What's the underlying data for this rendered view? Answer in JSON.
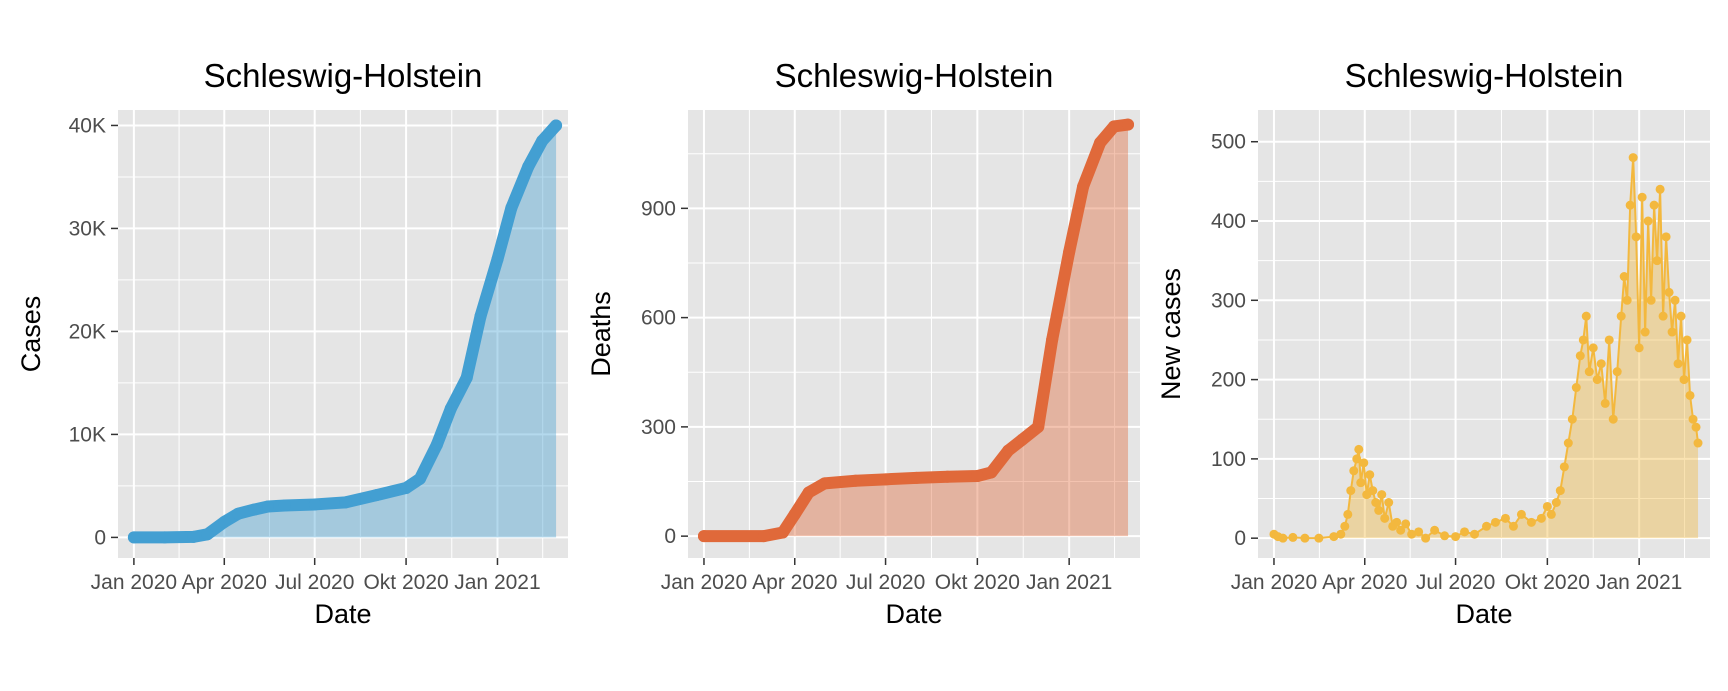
{
  "colors": {
    "panel_bg": "#e5e5e5",
    "grid": "#ffffff",
    "tick": "#333333",
    "cases": "#439fd2",
    "deaths": "#e0693a",
    "new_cases": "#f3b83e"
  },
  "chart_data": [
    {
      "type": "area",
      "title": "Schleswig-Holstein",
      "xlabel": "Date",
      "ylabel": "Cases",
      "x_range": [
        "2019-12-16",
        "2021-03-13"
      ],
      "ylim": [
        -2000,
        41500
      ],
      "y_ticks": [
        0,
        10000,
        20000,
        30000,
        40000
      ],
      "y_tick_labels": [
        "0",
        "10K",
        "20K",
        "30K",
        "40K"
      ],
      "x_ticks": [
        "2020-01-01",
        "2020-04-01",
        "2020-07-01",
        "2020-10-01",
        "2021-01-01"
      ],
      "x_tick_labels": [
        "Jan 2020",
        "Apr 2020",
        "Jul 2020",
        "Okt 2020",
        "Jan 2021"
      ],
      "color_key": "cases",
      "points": true,
      "fill": true,
      "series": [
        {
          "x": [
            "2020-01-01",
            "2020-02-01",
            "2020-03-01",
            "2020-03-15",
            "2020-04-01",
            "2020-04-15",
            "2020-05-01",
            "2020-05-15",
            "2020-06-01",
            "2020-07-01",
            "2020-08-01",
            "2020-09-01",
            "2020-10-01",
            "2020-10-15",
            "2020-11-01",
            "2020-11-15",
            "2020-12-01",
            "2020-12-15",
            "2021-01-01",
            "2021-01-15",
            "2021-02-01",
            "2021-02-15",
            "2021-03-01"
          ],
          "y": [
            0,
            0,
            50,
            300,
            1500,
            2300,
            2700,
            3000,
            3100,
            3200,
            3400,
            4100,
            4800,
            5700,
            9000,
            12500,
            15500,
            21500,
            27000,
            32000,
            36000,
            38500,
            40000
          ]
        }
      ]
    },
    {
      "type": "area",
      "title": "Schleswig-Holstein",
      "xlabel": "Date",
      "ylabel": "Deaths",
      "x_range": [
        "2019-12-16",
        "2021-03-13"
      ],
      "ylim": [
        -60,
        1170
      ],
      "y_ticks": [
        0,
        300,
        600,
        900
      ],
      "y_tick_labels": [
        "0",
        "300",
        "600",
        "900"
      ],
      "x_ticks": [
        "2020-01-01",
        "2020-04-01",
        "2020-07-01",
        "2020-10-01",
        "2021-01-01"
      ],
      "x_tick_labels": [
        "Jan 2020",
        "Apr 2020",
        "Jul 2020",
        "Okt 2020",
        "Jan 2021"
      ],
      "color_key": "deaths",
      "points": true,
      "fill": true,
      "series": [
        {
          "x": [
            "2020-01-01",
            "2020-03-01",
            "2020-03-20",
            "2020-04-01",
            "2020-04-15",
            "2020-05-01",
            "2020-06-01",
            "2020-07-01",
            "2020-08-01",
            "2020-09-01",
            "2020-10-01",
            "2020-10-15",
            "2020-11-01",
            "2020-11-15",
            "2020-12-01",
            "2020-12-15",
            "2021-01-01",
            "2021-01-15",
            "2021-02-01",
            "2021-02-15",
            "2021-03-01"
          ],
          "y": [
            0,
            0,
            10,
            60,
            120,
            145,
            152,
            156,
            160,
            163,
            165,
            175,
            235,
            265,
            300,
            540,
            780,
            960,
            1080,
            1125,
            1130
          ]
        }
      ]
    },
    {
      "type": "line",
      "title": "Schleswig-Holstein",
      "xlabel": "Date",
      "ylabel": "New cases",
      "x_range": [
        "2019-12-16",
        "2021-03-13"
      ],
      "ylim": [
        -25,
        540
      ],
      "y_ticks": [
        0,
        100,
        200,
        300,
        400,
        500
      ],
      "y_tick_labels": [
        "0",
        "100",
        "200",
        "300",
        "400",
        "500"
      ],
      "x_ticks": [
        "2020-01-01",
        "2020-04-01",
        "2020-07-01",
        "2020-10-01",
        "2021-01-01"
      ],
      "x_tick_labels": [
        "Jan 2020",
        "Apr 2020",
        "Jul 2020",
        "Okt 2020",
        "Jan 2021"
      ],
      "color_key": "new_cases",
      "points": true,
      "fill": true,
      "series": [
        {
          "x": [
            "2020-01-01",
            "2020-01-05",
            "2020-01-10",
            "2020-01-20",
            "2020-02-01",
            "2020-02-15",
            "2020-03-01",
            "2020-03-08",
            "2020-03-12",
            "2020-03-15",
            "2020-03-18",
            "2020-03-21",
            "2020-03-24",
            "2020-03-26",
            "2020-03-28",
            "2020-03-31",
            "2020-04-03",
            "2020-04-06",
            "2020-04-09",
            "2020-04-12",
            "2020-04-15",
            "2020-04-18",
            "2020-04-21",
            "2020-04-25",
            "2020-04-29",
            "2020-05-03",
            "2020-05-07",
            "2020-05-12",
            "2020-05-18",
            "2020-05-25",
            "2020-06-01",
            "2020-06-10",
            "2020-06-20",
            "2020-07-01",
            "2020-07-10",
            "2020-07-20",
            "2020-08-01",
            "2020-08-10",
            "2020-08-20",
            "2020-08-28",
            "2020-09-05",
            "2020-09-15",
            "2020-09-25",
            "2020-10-01",
            "2020-10-05",
            "2020-10-10",
            "2020-10-14",
            "2020-10-18",
            "2020-10-22",
            "2020-10-26",
            "2020-10-30",
            "2020-11-03",
            "2020-11-06",
            "2020-11-09",
            "2020-11-12",
            "2020-11-16",
            "2020-11-20",
            "2020-11-24",
            "2020-11-28",
            "2020-12-02",
            "2020-12-06",
            "2020-12-10",
            "2020-12-14",
            "2020-12-17",
            "2020-12-20",
            "2020-12-23",
            "2020-12-26",
            "2020-12-29",
            "2021-01-01",
            "2021-01-04",
            "2021-01-07",
            "2021-01-10",
            "2021-01-13",
            "2021-01-16",
            "2021-01-19",
            "2021-01-22",
            "2021-01-25",
            "2021-01-28",
            "2021-01-31",
            "2021-02-03",
            "2021-02-06",
            "2021-02-09",
            "2021-02-12",
            "2021-02-15",
            "2021-02-18",
            "2021-02-21",
            "2021-02-24",
            "2021-02-27",
            "2021-03-01"
          ],
          "y": [
            5,
            2,
            0,
            1,
            0,
            0,
            2,
            5,
            15,
            30,
            60,
            85,
            100,
            112,
            70,
            95,
            55,
            80,
            60,
            45,
            35,
            55,
            25,
            45,
            15,
            20,
            10,
            18,
            5,
            8,
            0,
            10,
            3,
            2,
            8,
            5,
            15,
            20,
            25,
            15,
            30,
            20,
            25,
            40,
            30,
            45,
            60,
            90,
            120,
            150,
            190,
            230,
            250,
            280,
            210,
            240,
            200,
            220,
            170,
            250,
            150,
            210,
            280,
            330,
            300,
            420,
            480,
            380,
            240,
            430,
            260,
            400,
            300,
            420,
            350,
            440,
            280,
            380,
            310,
            260,
            300,
            220,
            280,
            200,
            250,
            180,
            150,
            140,
            120
          ]
        }
      ]
    }
  ]
}
